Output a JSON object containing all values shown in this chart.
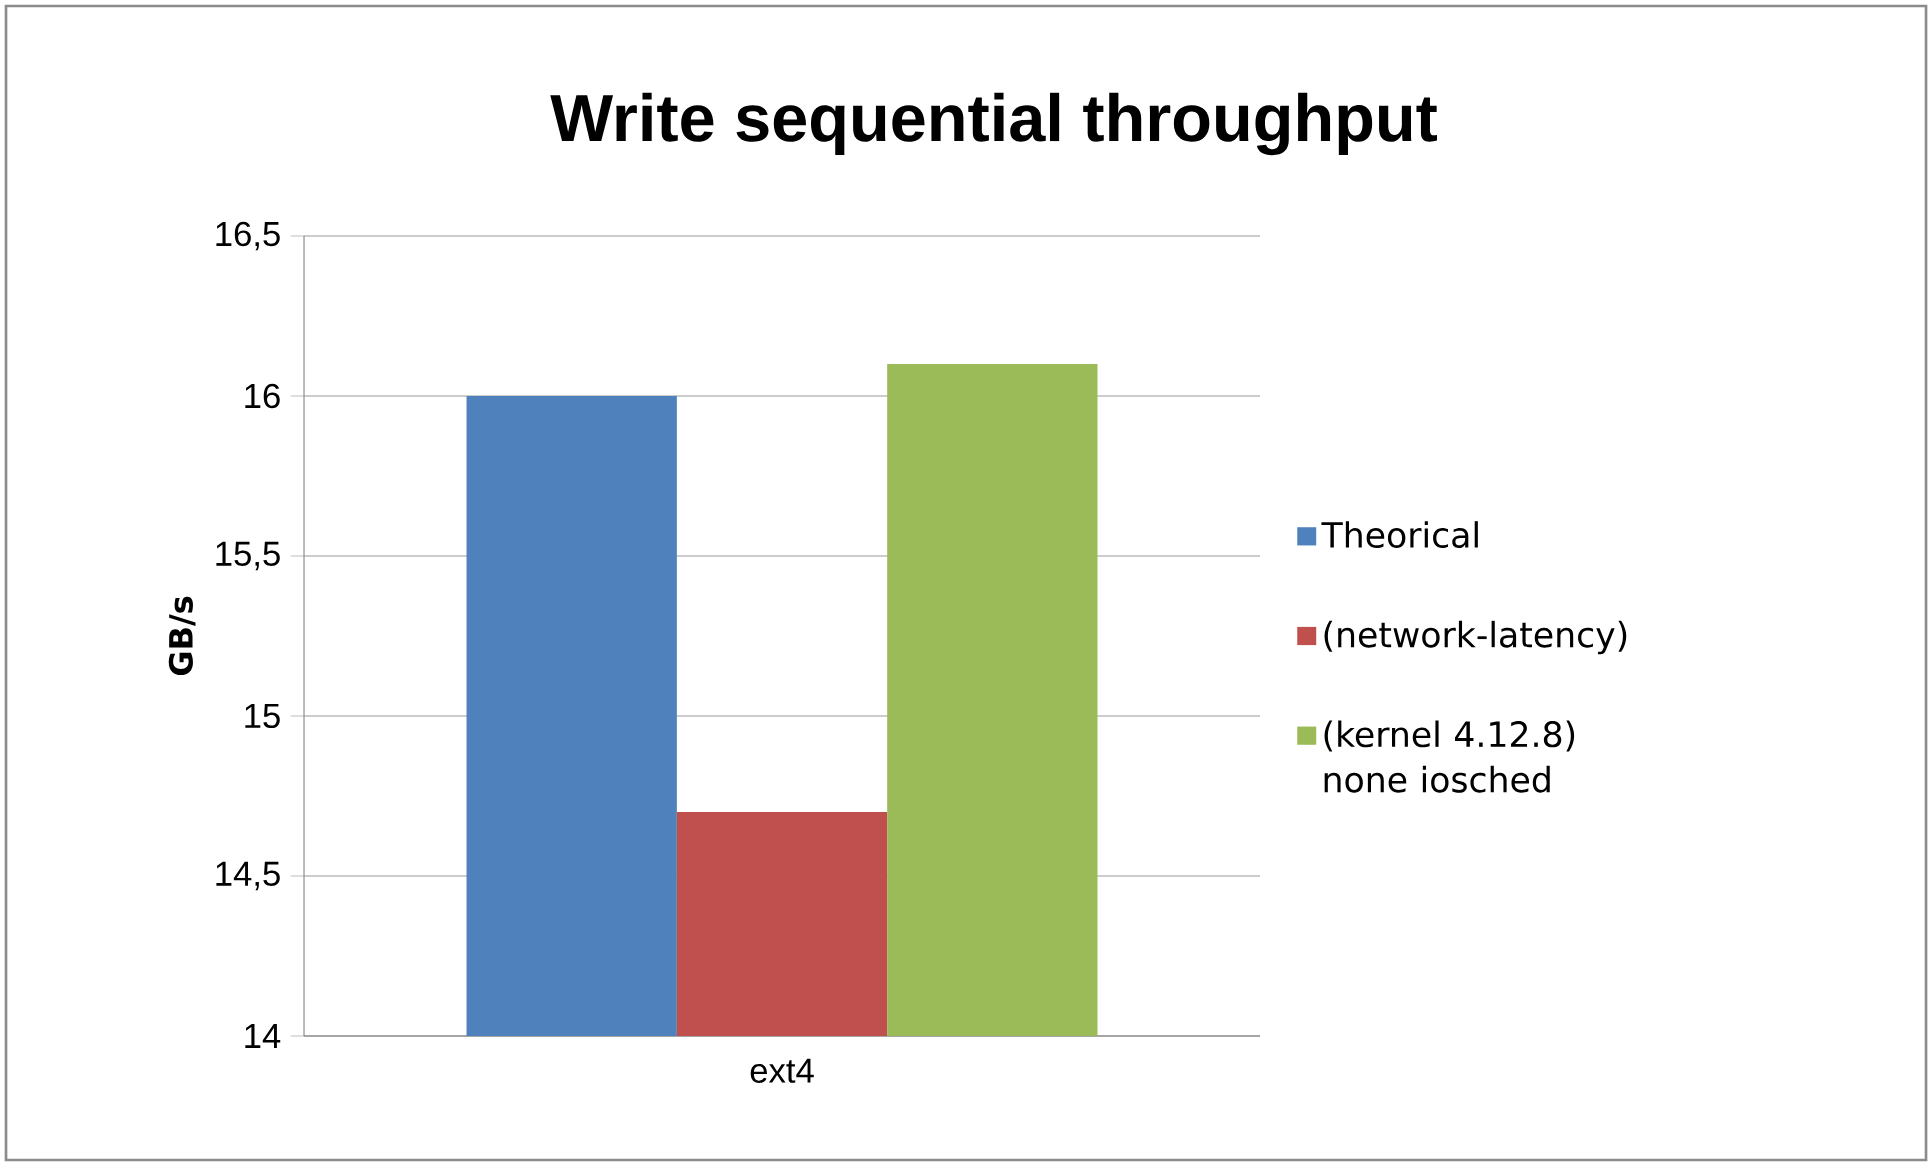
{
  "chart_data": {
    "type": "bar",
    "title": "Write sequential throughput",
    "ylabel": "GB/s",
    "categories": [
      "ext4"
    ],
    "series": [
      {
        "name": "Theorical",
        "color": "#4f81bd",
        "values": [
          16
        ]
      },
      {
        "name": "(network-latency)",
        "color": "#c0504d",
        "values": [
          14.7
        ]
      },
      {
        "name": "(kernel 4.12.8) none iosched",
        "color": "#9bbb59",
        "values": [
          16.1
        ]
      }
    ],
    "ylim": [
      14,
      16.5
    ],
    "yticks": [
      {
        "value": 14,
        "label": "14"
      },
      {
        "value": 14.5,
        "label": "14,5"
      },
      {
        "value": 15,
        "label": "15"
      },
      {
        "value": 15.5,
        "label": "15,5"
      },
      {
        "value": 16,
        "label": "16"
      },
      {
        "value": 16.5,
        "label": "16,5"
      }
    ],
    "grid": "y",
    "legend": "right"
  }
}
